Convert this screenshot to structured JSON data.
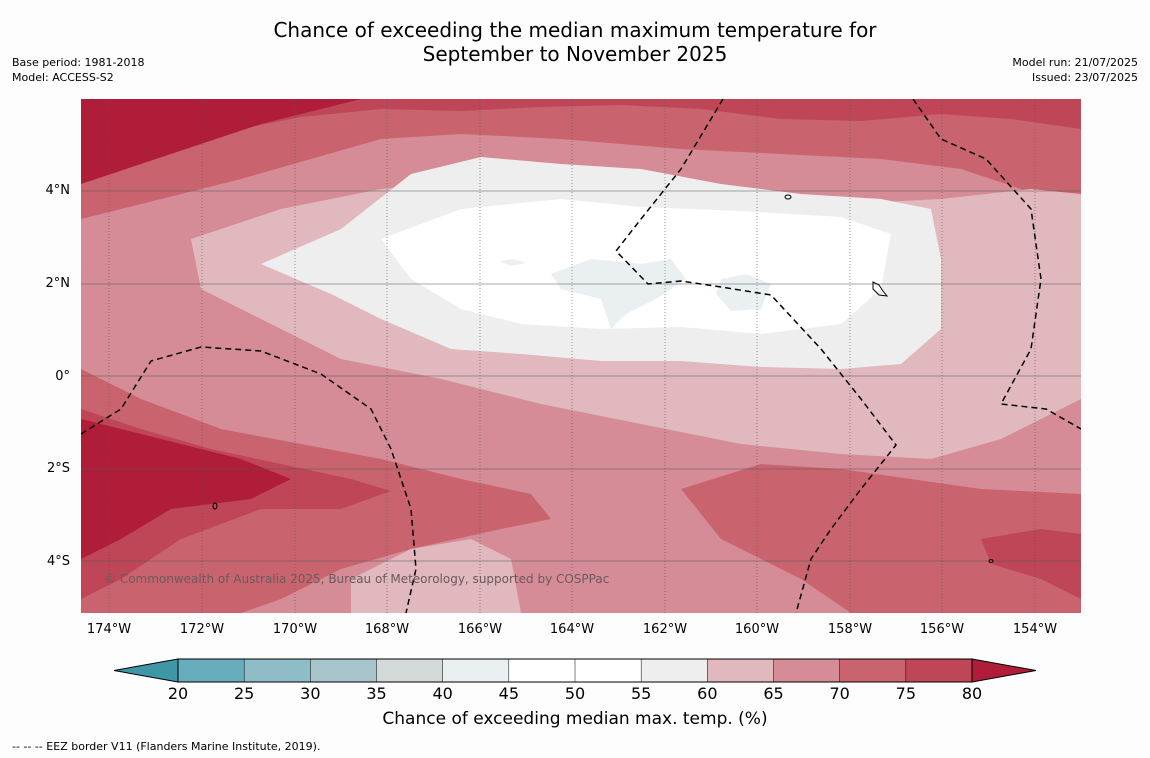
{
  "title": {
    "line1": "Chance of exceeding the median maximum temperature for",
    "line2": "September to November 2025"
  },
  "meta_left": {
    "base_period": "Base period: 1981-2018",
    "model": "Model: ACCESS-S2"
  },
  "meta_right": {
    "model_run": "Model run: 21/07/2025",
    "issued": "Issued: 23/07/2025"
  },
  "map": {
    "copyright": "© Commonwealth of Australia 2025, Bureau of Meteorology, supported by COSPPac",
    "lat_labels": [
      "4°N",
      "2°N",
      "0°",
      "2°S",
      "4°S"
    ],
    "lon_labels": [
      "174°W",
      "172°W",
      "170°W",
      "168°W",
      "166°W",
      "164°W",
      "162°W",
      "160°W",
      "158°W",
      "156°W",
      "154°W"
    ]
  },
  "colorbar": {
    "ticks": [
      "20",
      "25",
      "30",
      "35",
      "40",
      "45",
      "50",
      "55",
      "60",
      "65",
      "70",
      "75",
      "80"
    ],
    "colors": [
      "#3f97a6",
      "#68adbd",
      "#8ebcc7",
      "#a9c5cc",
      "#d3d8d9",
      "#eaf0f1",
      "#ffffff",
      "#ffffff",
      "#efeeee",
      "#e0b8be",
      "#d58c96",
      "#c9646f",
      "#bf4657",
      "#b01d38"
    ],
    "label": "Chance of exceeding median max. temp. (%)"
  },
  "footnote": "--  --  -- EEZ border V11 (Flanders Marine Institute, 2019)."
}
